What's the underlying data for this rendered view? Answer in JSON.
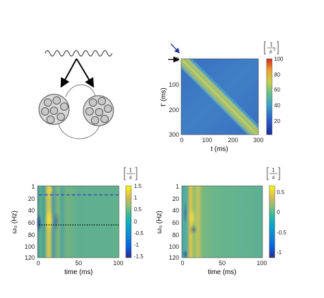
{
  "figure": {
    "schematic": {
      "description_hidden": ""
    },
    "panel_b": {
      "xlabel": "t (ms)",
      "ylabel": "t' (ms)",
      "xticks": [
        "0",
        "100",
        "200",
        "300"
      ],
      "yticks": [
        "0",
        "100",
        "200",
        "300"
      ],
      "colorbar_unit": "[1/s²]",
      "colorbar_ticks": [
        "20",
        "40",
        "60",
        "80",
        "100"
      ]
    },
    "panel_c": {
      "xlabel": "time (ms)",
      "ylabel": "ω₀ (Hz)",
      "xticks": [
        "0",
        "50",
        "100"
      ],
      "yticks": [
        "1",
        "20",
        "40",
        "60",
        "80",
        "100",
        "120"
      ],
      "colorbar_unit": "[1/s]",
      "colorbar_ticks": [
        "1.5",
        "1",
        "0.5",
        "0",
        "-0.5",
        "-1",
        "-1.5"
      ]
    },
    "panel_d": {
      "xlabel": "time (ms)",
      "ylabel": "ω₀ (Hz)",
      "xticks": [
        "0",
        "50",
        "100"
      ],
      "yticks": [
        "1",
        "20",
        "40",
        "60",
        "80",
        "100",
        "120"
      ],
      "colorbar_unit": "[1/s]",
      "colorbar_ticks": [
        "0.5",
        "0",
        "-0.5",
        "-1"
      ]
    }
  },
  "chart_data": [
    {
      "type": "heatmap",
      "x_range": [
        0,
        300
      ],
      "y_range": [
        0,
        300
      ],
      "colorbar_range": [
        5,
        105
      ],
      "description_values": {
        "band": "diagonal t = t' , peak ≈100 on diagonal stripes, background ≈15"
      },
      "xlabel": "t (ms)",
      "ylabel": "t' (ms)"
    },
    {
      "type": "heatmap",
      "x_range": [
        0,
        100
      ],
      "y_range": [
        1,
        120
      ],
      "colorbar_range": [
        -1.5,
        1.5
      ],
      "reference_lines": [
        {
          "y": 13,
          "style": "dashed"
        },
        {
          "y": 65,
          "style": "dotted"
        }
      ],
      "xlabel": "time (ms)",
      "ylabel": "ω₀ (Hz)"
    },
    {
      "type": "heatmap",
      "x_range": [
        0,
        100
      ],
      "y_range": [
        1,
        120
      ],
      "colorbar_range": [
        -1.15,
        0.6
      ],
      "xlabel": "time (ms)",
      "ylabel": "ω₀ (Hz)"
    }
  ]
}
